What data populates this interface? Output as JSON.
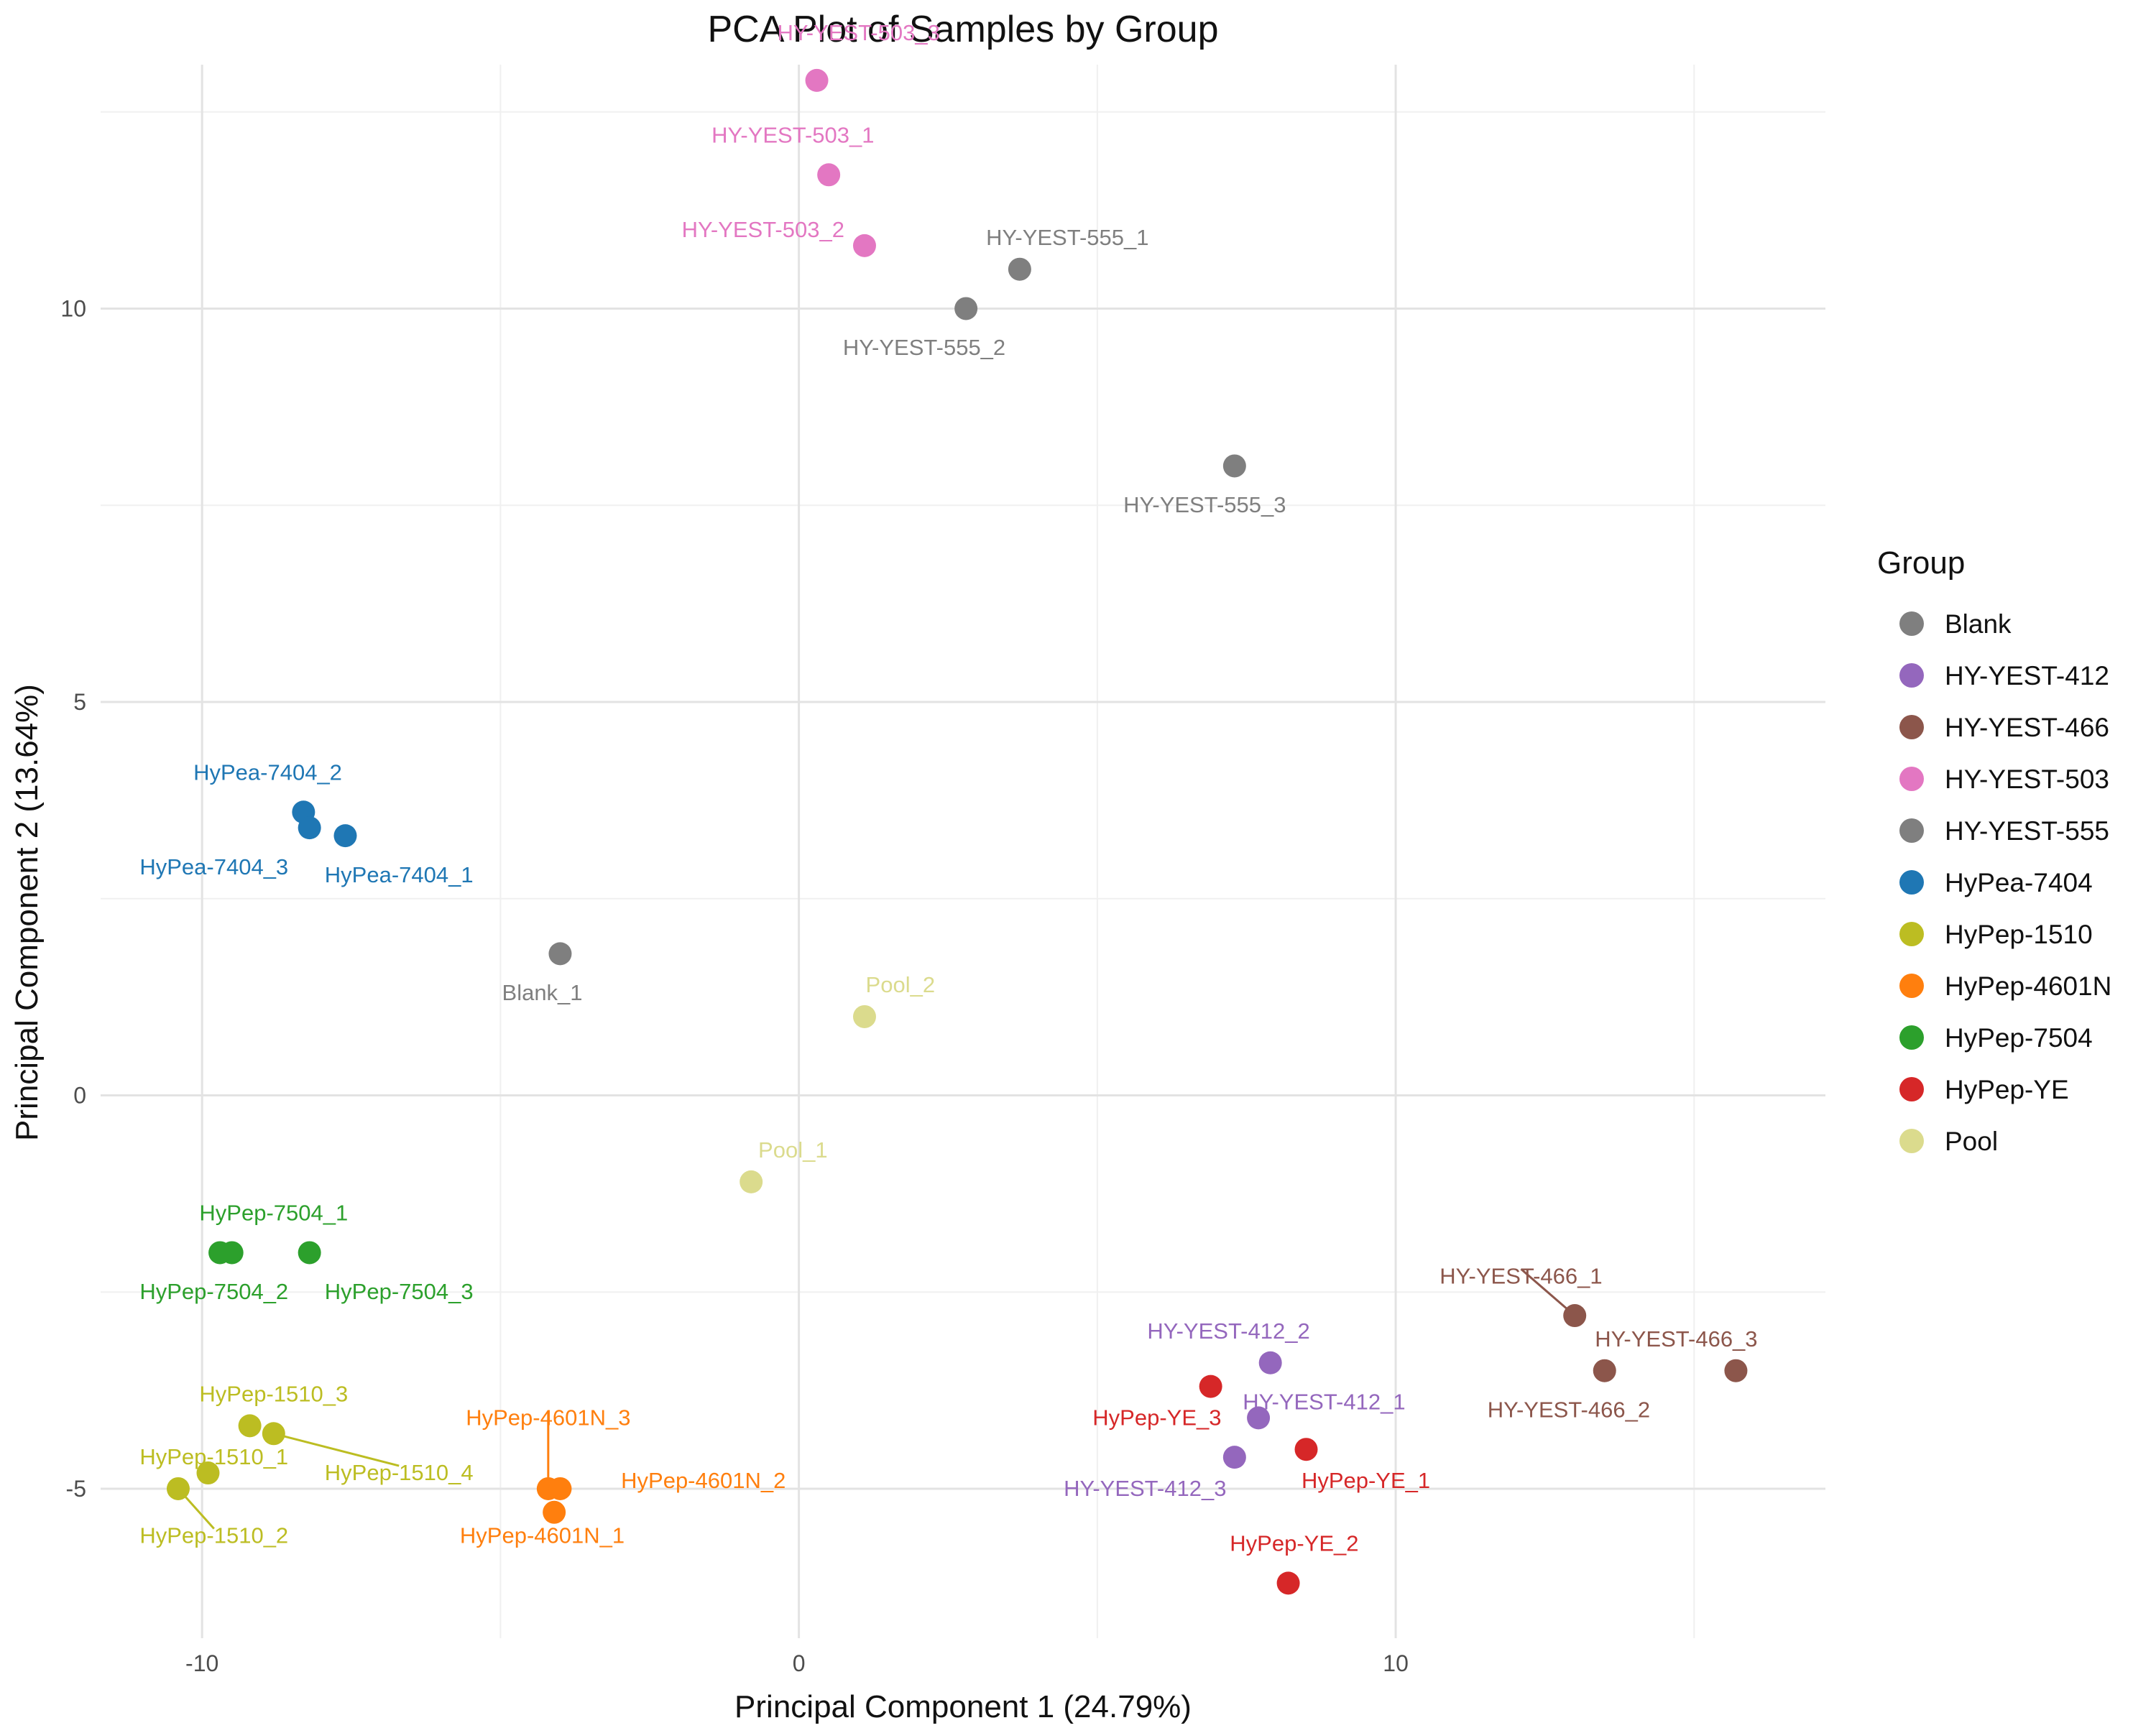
{
  "chart_data": {
    "type": "scatter",
    "title": "PCA Plot of Samples by Group",
    "xlabel": "Principal Component 1 (24.79%)",
    "ylabel": "Principal Component 2 (13.64%)",
    "xlim": [
      -11.7,
      17.2
    ],
    "ylim": [
      -6.9,
      13.1
    ],
    "xticks": [
      -10,
      0,
      10
    ],
    "yticks": [
      -5,
      0,
      5,
      10
    ],
    "grid": true,
    "legend": {
      "title": "Group",
      "position": "right",
      "items": [
        {
          "label": "Blank",
          "color": "#7f7f7f"
        },
        {
          "label": "HY-YEST-412",
          "color": "#9467bd"
        },
        {
          "label": "HY-YEST-466",
          "color": "#8c564b"
        },
        {
          "label": "HY-YEST-503",
          "color": "#e377c2"
        },
        {
          "label": "HY-YEST-555",
          "color": "#7f7f7f"
        },
        {
          "label": "HyPea-7404",
          "color": "#1f77b4"
        },
        {
          "label": "HyPep-1510",
          "color": "#bcbd22"
        },
        {
          "label": "HyPep-4601N",
          "color": "#ff7f0e"
        },
        {
          "label": "HyPep-7504",
          "color": "#2ca02c"
        },
        {
          "label": "HyPep-YE",
          "color": "#d62728"
        },
        {
          "label": "Pool",
          "color": "#dbdb8d"
        }
      ]
    },
    "points": [
      {
        "label": "HY-YEST-503_3",
        "group": "HY-YEST-503",
        "x": 0.3,
        "y": 12.9,
        "label_x": 1.0,
        "label_y": 13.5
      },
      {
        "label": "HY-YEST-503_1",
        "group": "HY-YEST-503",
        "x": 0.5,
        "y": 11.7,
        "label_x": -0.1,
        "label_y": 12.2
      },
      {
        "label": "HY-YEST-503_2",
        "group": "HY-YEST-503",
        "x": 1.1,
        "y": 10.8,
        "label_x": -0.6,
        "label_y": 11.0
      },
      {
        "label": "HY-YEST-555_1",
        "group": "HY-YEST-555",
        "x": 3.7,
        "y": 10.5,
        "label_x": 4.5,
        "label_y": 10.9
      },
      {
        "label": "HY-YEST-555_2",
        "group": "HY-YEST-555",
        "x": 2.8,
        "y": 10.0,
        "label_x": 2.1,
        "label_y": 9.5
      },
      {
        "label": "HY-YEST-555_3",
        "group": "HY-YEST-555",
        "x": 7.3,
        "y": 8.0,
        "label_x": 6.8,
        "label_y": 7.5
      },
      {
        "label": "HyPea-7404_2",
        "group": "HyPea-7404",
        "x": -8.3,
        "y": 3.6,
        "label_x": -8.9,
        "label_y": 4.1
      },
      {
        "label": "HyPea-7404_3",
        "group": "HyPea-7404",
        "x": -8.2,
        "y": 3.4,
        "label_x": -9.8,
        "label_y": 2.9
      },
      {
        "label": "HyPea-7404_1",
        "group": "HyPea-7404",
        "x": -7.6,
        "y": 3.3,
        "label_x": -6.7,
        "label_y": 2.8
      },
      {
        "label": "Blank_1",
        "group": "Blank",
        "x": -4.0,
        "y": 1.8,
        "label_x": -4.3,
        "label_y": 1.3
      },
      {
        "label": "Pool_2",
        "group": "Pool",
        "x": 1.1,
        "y": 1.0,
        "label_x": 1.7,
        "label_y": 1.4
      },
      {
        "label": "Pool_1",
        "group": "Pool",
        "x": -0.8,
        "y": -1.1,
        "label_x": -0.1,
        "label_y": -0.7
      },
      {
        "label": "HyPep-7504_1",
        "group": "HyPep-7504",
        "x": -9.5,
        "y": -2.0,
        "label_x": -8.8,
        "label_y": -1.5
      },
      {
        "label": "HyPep-7504_2",
        "group": "HyPep-7504",
        "x": -9.7,
        "y": -2.0,
        "label_x": -9.8,
        "label_y": -2.5
      },
      {
        "label": "HyPep-7504_3",
        "group": "HyPep-7504",
        "x": -8.2,
        "y": -2.0,
        "label_x": -6.7,
        "label_y": -2.5
      },
      {
        "label": "HyPep-1510_3",
        "group": "HyPep-1510",
        "x": -9.2,
        "y": -4.2,
        "label_x": -8.8,
        "label_y": -3.8
      },
      {
        "label": "HyPep-1510_1",
        "group": "HyPep-1510",
        "x": -9.9,
        "y": -4.8,
        "label_x": -9.8,
        "label_y": -4.6
      },
      {
        "label": "HyPep-1510_4",
        "group": "HyPep-1510",
        "x": -8.8,
        "y": -4.3,
        "label_x": -6.7,
        "label_y": -4.8,
        "leader": true
      },
      {
        "label": "HyPep-1510_2",
        "group": "HyPep-1510",
        "x": -10.4,
        "y": -5.0,
        "label_x": -9.8,
        "label_y": -5.6,
        "leader": true
      },
      {
        "label": "HyPep-4601N_3",
        "group": "HyPep-4601N",
        "x": -4.2,
        "y": -5.0,
        "label_x": -4.2,
        "label_y": -4.1,
        "leader": true
      },
      {
        "label": "HyPep-4601N_2",
        "group": "HyPep-4601N",
        "x": -4.0,
        "y": -5.0,
        "label_x": -1.6,
        "label_y": -4.9
      },
      {
        "label": "HyPep-4601N_1",
        "group": "HyPep-4601N",
        "x": -4.1,
        "y": -5.3,
        "label_x": -4.3,
        "label_y": -5.6
      },
      {
        "label": "HY-YEST-412_2",
        "group": "HY-YEST-412",
        "x": 7.9,
        "y": -3.4,
        "label_x": 7.2,
        "label_y": -3.0
      },
      {
        "label": "HY-YEST-412_1",
        "group": "HY-YEST-412",
        "x": 7.7,
        "y": -4.1,
        "label_x": 8.8,
        "label_y": -3.9
      },
      {
        "label": "HY-YEST-412_3",
        "group": "HY-YEST-412",
        "x": 7.3,
        "y": -4.6,
        "label_x": 5.8,
        "label_y": -5.0
      },
      {
        "label": "HyPep-YE_3",
        "group": "HyPep-YE",
        "x": 6.9,
        "y": -3.7,
        "label_x": 6.0,
        "label_y": -4.1
      },
      {
        "label": "HyPep-YE_1",
        "group": "HyPep-YE",
        "x": 8.5,
        "y": -4.5,
        "label_x": 9.5,
        "label_y": -4.9
      },
      {
        "label": "HyPep-YE_2",
        "group": "HyPep-YE",
        "x": 8.2,
        "y": -6.2,
        "label_x": 8.3,
        "label_y": -5.7
      },
      {
        "label": "HY-YEST-466_1",
        "group": "HY-YEST-466",
        "x": 13.0,
        "y": -2.8,
        "label_x": 12.1,
        "label_y": -2.3,
        "leader": true
      },
      {
        "label": "HY-YEST-466_3",
        "group": "HY-YEST-466",
        "x": 15.7,
        "y": -3.5,
        "label_x": 14.7,
        "label_y": -3.1
      },
      {
        "label": "HY-YEST-466_2",
        "group": "HY-YEST-466",
        "x": 13.5,
        "y": -3.5,
        "label_x": 12.9,
        "label_y": -4.0
      }
    ]
  }
}
